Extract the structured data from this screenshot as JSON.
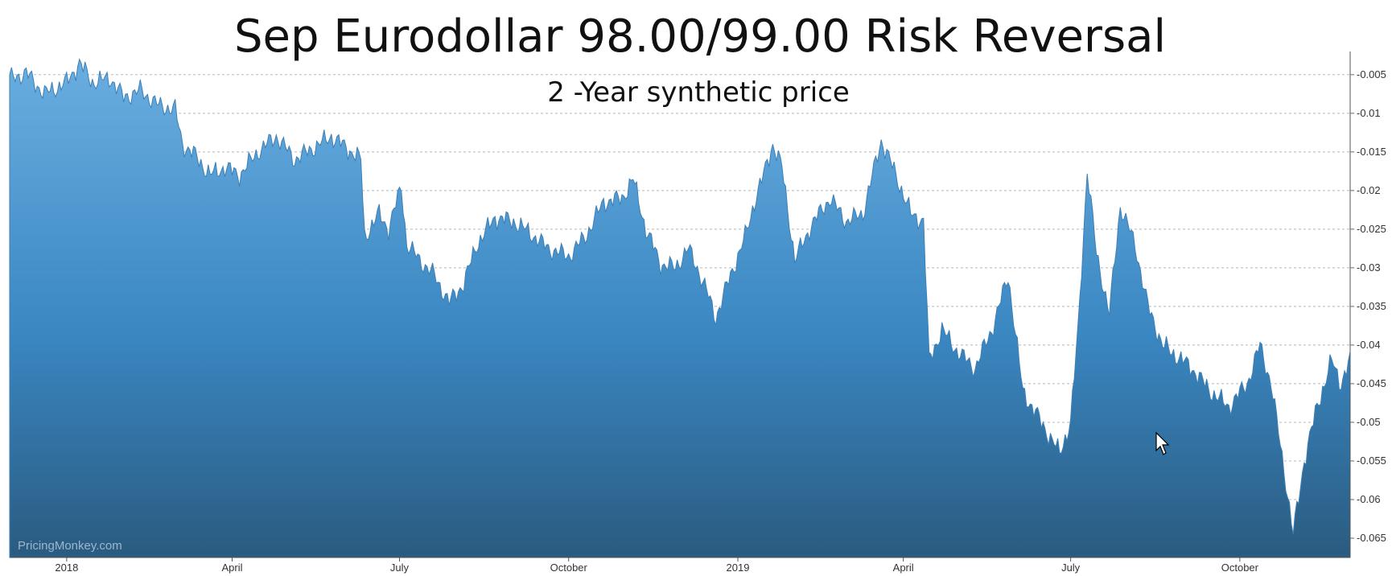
{
  "chart_data": {
    "type": "area",
    "title": "Sep Eurodollar 98.00/99.00 Risk Reversal",
    "subtitle": "2 -Year synthetic price",
    "xlabel": "",
    "ylabel": "",
    "watermark": "PricingMonkey.com",
    "ylim": [
      -0.0675,
      -0.002
    ],
    "xlim": [
      "2017-12-01",
      "2019-11-30"
    ],
    "y_axis_position": "right",
    "grid": "horizontal-dashed",
    "y_ticks": [
      -0.005,
      -0.01,
      -0.015,
      -0.02,
      -0.025,
      -0.03,
      -0.035,
      -0.04,
      -0.045,
      -0.05,
      -0.055,
      -0.06,
      -0.065
    ],
    "y_tick_labels": [
      "-0.005",
      "-0.01",
      "-0.015",
      "-0.02",
      "-0.025",
      "-0.03",
      "-0.035",
      "-0.04",
      "-0.045",
      "-0.05",
      "-0.055",
      "-0.06",
      "-0.065"
    ],
    "x_ticks": [
      {
        "label": "2018",
        "date": "2018-01-01"
      },
      {
        "label": "April",
        "date": "2018-04-01"
      },
      {
        "label": "July",
        "date": "2018-07-01"
      },
      {
        "label": "October",
        "date": "2018-10-01"
      },
      {
        "label": "2019",
        "date": "2019-01-01"
      },
      {
        "label": "April",
        "date": "2019-04-01"
      },
      {
        "label": "July",
        "date": "2019-07-01"
      },
      {
        "label": "October",
        "date": "2019-10-01"
      }
    ],
    "colors": {
      "fill_top": "#6aaee0",
      "fill_mid": "#3a87c2",
      "fill_bottom": "#2a5b80",
      "line": "#3d7fb5"
    },
    "series": [
      {
        "values": [
          [
            "2017-12-01",
            -0.0055
          ],
          [
            "2017-12-10",
            -0.0048
          ],
          [
            "2017-12-20",
            -0.0075
          ],
          [
            "2018-01-01",
            -0.006
          ],
          [
            "2018-01-08",
            -0.0035
          ],
          [
            "2018-01-15",
            -0.006
          ],
          [
            "2018-01-25",
            -0.0055
          ],
          [
            "2018-02-01",
            -0.008
          ],
          [
            "2018-02-10",
            -0.007
          ],
          [
            "2018-02-20",
            -0.009
          ],
          [
            "2018-03-01",
            -0.0095
          ],
          [
            "2018-03-05",
            -0.014
          ],
          [
            "2018-03-12",
            -0.0155
          ],
          [
            "2018-03-20",
            -0.018
          ],
          [
            "2018-03-28",
            -0.017
          ],
          [
            "2018-04-05",
            -0.018
          ],
          [
            "2018-04-15",
            -0.015
          ],
          [
            "2018-04-25",
            -0.013
          ],
          [
            "2018-05-05",
            -0.016
          ],
          [
            "2018-05-15",
            -0.0145
          ],
          [
            "2018-05-25",
            -0.013
          ],
          [
            "2018-06-05",
            -0.015
          ],
          [
            "2018-06-10",
            -0.016
          ],
          [
            "2018-06-12",
            -0.026
          ],
          [
            "2018-06-20",
            -0.023
          ],
          [
            "2018-06-25",
            -0.025
          ],
          [
            "2018-07-02",
            -0.0195
          ],
          [
            "2018-07-05",
            -0.027
          ],
          [
            "2018-07-12",
            -0.029
          ],
          [
            "2018-07-20",
            -0.031
          ],
          [
            "2018-07-28",
            -0.0345
          ],
          [
            "2018-08-05",
            -0.032
          ],
          [
            "2018-08-12",
            -0.027
          ],
          [
            "2018-08-22",
            -0.0235
          ],
          [
            "2018-09-01",
            -0.024
          ],
          [
            "2018-09-10",
            -0.0255
          ],
          [
            "2018-09-20",
            -0.0275
          ],
          [
            "2018-10-01",
            -0.0285
          ],
          [
            "2018-10-10",
            -0.026
          ],
          [
            "2018-10-20",
            -0.0215
          ],
          [
            "2018-10-30",
            -0.021
          ],
          [
            "2018-11-05",
            -0.0185
          ],
          [
            "2018-11-12",
            -0.025
          ],
          [
            "2018-11-20",
            -0.0295
          ],
          [
            "2018-11-28",
            -0.03
          ],
          [
            "2018-12-05",
            -0.0275
          ],
          [
            "2018-12-10",
            -0.03
          ],
          [
            "2018-12-15",
            -0.033
          ],
          [
            "2018-12-20",
            -0.0365
          ],
          [
            "2018-12-28",
            -0.031
          ],
          [
            "2019-01-05",
            -0.026
          ],
          [
            "2019-01-10",
            -0.0215
          ],
          [
            "2019-01-15",
            -0.018
          ],
          [
            "2019-01-20",
            -0.014
          ],
          [
            "2019-01-25",
            -0.017
          ],
          [
            "2019-02-01",
            -0.029
          ],
          [
            "2019-02-10",
            -0.0245
          ],
          [
            "2019-02-20",
            -0.021
          ],
          [
            "2019-03-01",
            -0.024
          ],
          [
            "2019-03-10",
            -0.023
          ],
          [
            "2019-03-20",
            -0.0135
          ],
          [
            "2019-03-28",
            -0.018
          ],
          [
            "2019-04-05",
            -0.023
          ],
          [
            "2019-04-12",
            -0.024
          ],
          [
            "2019-04-15",
            -0.042
          ],
          [
            "2019-04-22",
            -0.038
          ],
          [
            "2019-05-01",
            -0.041
          ],
          [
            "2019-05-10",
            -0.043
          ],
          [
            "2019-05-20",
            -0.0375
          ],
          [
            "2019-05-28",
            -0.031
          ],
          [
            "2019-06-05",
            -0.046
          ],
          [
            "2019-06-15",
            -0.05
          ],
          [
            "2019-06-25",
            -0.054
          ],
          [
            "2019-07-01",
            -0.05
          ],
          [
            "2019-07-05",
            -0.038
          ],
          [
            "2019-07-10",
            -0.0175
          ],
          [
            "2019-07-15",
            -0.028
          ],
          [
            "2019-07-22",
            -0.036
          ],
          [
            "2019-07-28",
            -0.022
          ],
          [
            "2019-08-05",
            -0.027
          ],
          [
            "2019-08-12",
            -0.035
          ],
          [
            "2019-08-20",
            -0.04
          ],
          [
            "2019-08-28",
            -0.0415
          ],
          [
            "2019-09-05",
            -0.043
          ],
          [
            "2019-09-15",
            -0.046
          ],
          [
            "2019-09-25",
            -0.048
          ],
          [
            "2019-10-05",
            -0.045
          ],
          [
            "2019-10-12",
            -0.04
          ],
          [
            "2019-10-18",
            -0.045
          ],
          [
            "2019-10-25",
            -0.056
          ],
          [
            "2019-10-30",
            -0.0645
          ],
          [
            "2019-11-05",
            -0.055
          ],
          [
            "2019-11-12",
            -0.048
          ],
          [
            "2019-11-20",
            -0.042
          ],
          [
            "2019-11-25",
            -0.045
          ],
          [
            "2019-11-30",
            -0.042
          ]
        ]
      }
    ]
  }
}
